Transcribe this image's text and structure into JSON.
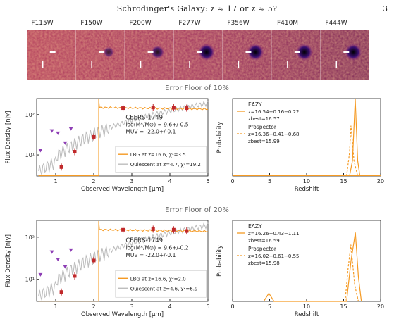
{
  "header": {
    "title": "Schrodinger's Galaxy: z ≈ 17 or z ≈ 5?",
    "page_number": "3"
  },
  "filters": [
    "F115W",
    "F150W",
    "F200W",
    "F277W",
    "F356W",
    "F410M",
    "F444W"
  ],
  "panels": [
    {
      "section_title": "Error Floor of 10%",
      "sed": {
        "ylabel": "Flux Density [nJy]",
        "xlabel": "Observed Wavelength [μm]",
        "xticks": [
          "1",
          "2",
          "3",
          "4",
          "5"
        ],
        "yticks": [
          "10¹",
          "10²"
        ],
        "object": "CEERS-1749",
        "mass": "log(M*/M⊙) = 9.6+/-0.5",
        "muv": "MUV = -22.0+/-0.1",
        "legend": [
          "LBG at z=16.6, χ²=3.5",
          "Quiescent at z=4.7, χ²=19.2"
        ]
      },
      "pz": {
        "ylabel": "Probability",
        "xlabel": "Redshift",
        "xticks": [
          "0",
          "5",
          "10",
          "15",
          "20"
        ],
        "eazy_label": "EAZY",
        "eazy_z": "z=16.54+0.16−0.22",
        "eazy_best": "zbest=16.57",
        "prosp_label": "Prospector",
        "prosp_z": "z=16.36+0.41−0.68",
        "prosp_best": "zbest=15.99"
      }
    },
    {
      "section_title": "Error Floor of 20%",
      "sed": {
        "ylabel": "Flux Density [nJy]",
        "xlabel": "Observed Wavelength [μm]",
        "xticks": [
          "1",
          "2",
          "3",
          "4",
          "5"
        ],
        "yticks": [
          "10¹",
          "10²"
        ],
        "object": "CEERS-1749",
        "mass": "log(M*/M⊙) = 9.6+/-0.2",
        "muv": "MUV = -22.0+/-0.1",
        "legend": [
          "LBG at z=16.6, χ²=2.0",
          "Quiescent at z=4.6, χ²=6.9"
        ]
      },
      "pz": {
        "ylabel": "Probability",
        "xlabel": "Redshift",
        "xticks": [
          "0",
          "5",
          "10",
          "15",
          "20"
        ],
        "eazy_label": "EAZY",
        "eazy_z": "z=16.26+0.43−1.11",
        "eazy_best": "zbest=16.59",
        "prosp_label": "Prospector",
        "prosp_z": "z=16.02+0.61−0.55",
        "prosp_best": "zbest=15.98"
      }
    }
  ],
  "chart_data": [
    {
      "type": "scatter",
      "title": "",
      "xlabel": "Observed Wavelength [μm]",
      "ylabel": "Flux Density [nJy]",
      "xlim": [
        0.5,
        5
      ],
      "ylim": [
        3,
        250
      ],
      "yscale": "log",
      "series": [
        {
          "name": "Photometry",
          "x": [
            1.15,
            1.5,
            2.0,
            2.77,
            3.56,
            4.1,
            4.44
          ],
          "y": [
            5,
            12,
            28,
            145,
            150,
            148,
            145
          ]
        },
        {
          "name": "Upper limits",
          "x": [
            0.6,
            0.9,
            1.06,
            1.25,
            1.4
          ],
          "y": [
            13,
            40,
            35,
            20,
            45
          ]
        }
      ],
      "legend": [
        "LBG at z=16.6, χ²=3.5",
        "Quiescent at z=4.7, χ²=19.2"
      ]
    },
    {
      "type": "line",
      "xlabel": "Redshift",
      "ylabel": "Probability",
      "xlim": [
        0,
        20
      ],
      "series": [
        {
          "name": "EAZY",
          "x": [
            15.8,
            16.2,
            16.57,
            16.9,
            17.2
          ],
          "y": [
            0,
            0.2,
            1.0,
            0.2,
            0
          ]
        },
        {
          "name": "Prospector",
          "x": [
            15.4,
            15.8,
            15.99,
            16.4,
            16.9
          ],
          "y": [
            0,
            0.3,
            0.65,
            0.2,
            0
          ]
        }
      ]
    },
    {
      "type": "scatter",
      "xlabel": "Observed Wavelength [μm]",
      "ylabel": "Flux Density [nJy]",
      "xlim": [
        0.5,
        5
      ],
      "ylim": [
        3,
        250
      ],
      "yscale": "log",
      "series": [
        {
          "name": "Photometry",
          "x": [
            1.15,
            1.5,
            2.0,
            2.77,
            3.56,
            4.1,
            4.44
          ],
          "y": [
            5,
            12,
            28,
            150,
            155,
            150,
            140
          ]
        },
        {
          "name": "Upper limits",
          "x": [
            0.6,
            0.9,
            1.06,
            1.25,
            1.4
          ],
          "y": [
            13,
            45,
            30,
            20,
            50
          ]
        }
      ],
      "legend": [
        "LBG at z=16.6, χ²=2.0",
        "Quiescent at z=4.6, χ²=6.9"
      ]
    },
    {
      "type": "line",
      "xlabel": "Redshift",
      "ylabel": "Probability",
      "xlim": [
        0,
        20
      ],
      "series": [
        {
          "name": "EAZY",
          "x": [
            4.2,
            4.9,
            5.6,
            15.4,
            16.0,
            16.59,
            17.0,
            17.4
          ],
          "y": [
            0,
            0.1,
            0,
            0,
            0.5,
            0.85,
            0.3,
            0
          ]
        },
        {
          "name": "Prospector",
          "x": [
            15.2,
            15.6,
            15.98,
            16.5,
            17.0
          ],
          "y": [
            0,
            0.4,
            0.7,
            0.2,
            0
          ]
        }
      ]
    }
  ]
}
